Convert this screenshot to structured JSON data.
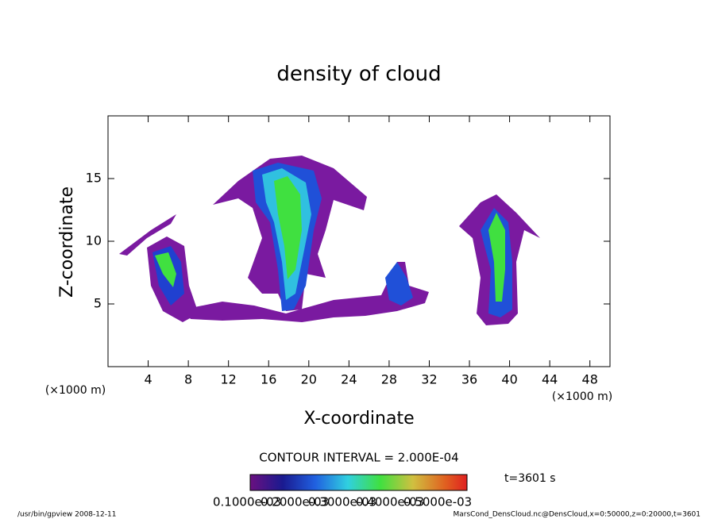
{
  "chart_data": {
    "type": "contour",
    "title": "density of cloud",
    "x_label": "X-coordinate",
    "y_label": "Z-coordinate",
    "x_unit": "(×1000 m)",
    "y_unit": "(×1000 m)",
    "xlim": [
      0,
      50
    ],
    "xticks": [
      4,
      8,
      12,
      16,
      20,
      24,
      28,
      32,
      36,
      40,
      44,
      48
    ],
    "ylim": [
      0,
      20
    ],
    "yticks": [
      5,
      10,
      15
    ],
    "contour_interval": "CONTOUR INTERVAL = 2.000E-04",
    "time": "t=3601 s",
    "colorbar_labels": [
      "0.1000e-03",
      "0.2000e-03",
      "0.3000e-03",
      "0.4000e-03",
      "0.5000e-03"
    ],
    "footer_left": "/usr/bin/gpview   2008-12-11",
    "footer_right": "MarsCond_DensCloud.nc@DensCloud,x=0:50000,z=0:20000,t=3601"
  }
}
